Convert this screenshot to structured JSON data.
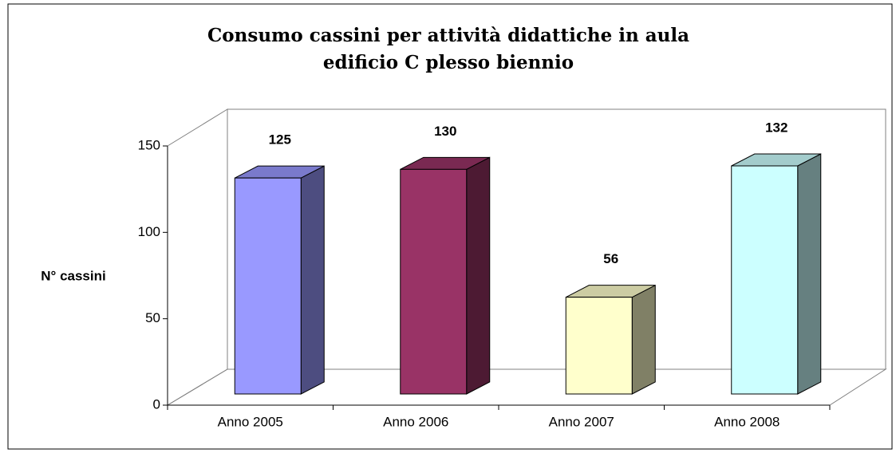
{
  "chart_data": {
    "type": "bar3d",
    "title": [
      "Consumo cassini per attività didattiche in aula",
      "edificio C plesso biennio"
    ],
    "y_label": "N° cassini",
    "categories": [
      "Anno 2005",
      "Anno 2006",
      "Anno 2007",
      "Anno 2008"
    ],
    "values": [
      125,
      130,
      56,
      132
    ],
    "colors": [
      "#9999ff",
      "#993366",
      "#ffffcc",
      "#ccffff"
    ],
    "ylim": [
      0,
      150
    ],
    "yticks": [
      0,
      50,
      100,
      150
    ],
    "grid": false
  }
}
